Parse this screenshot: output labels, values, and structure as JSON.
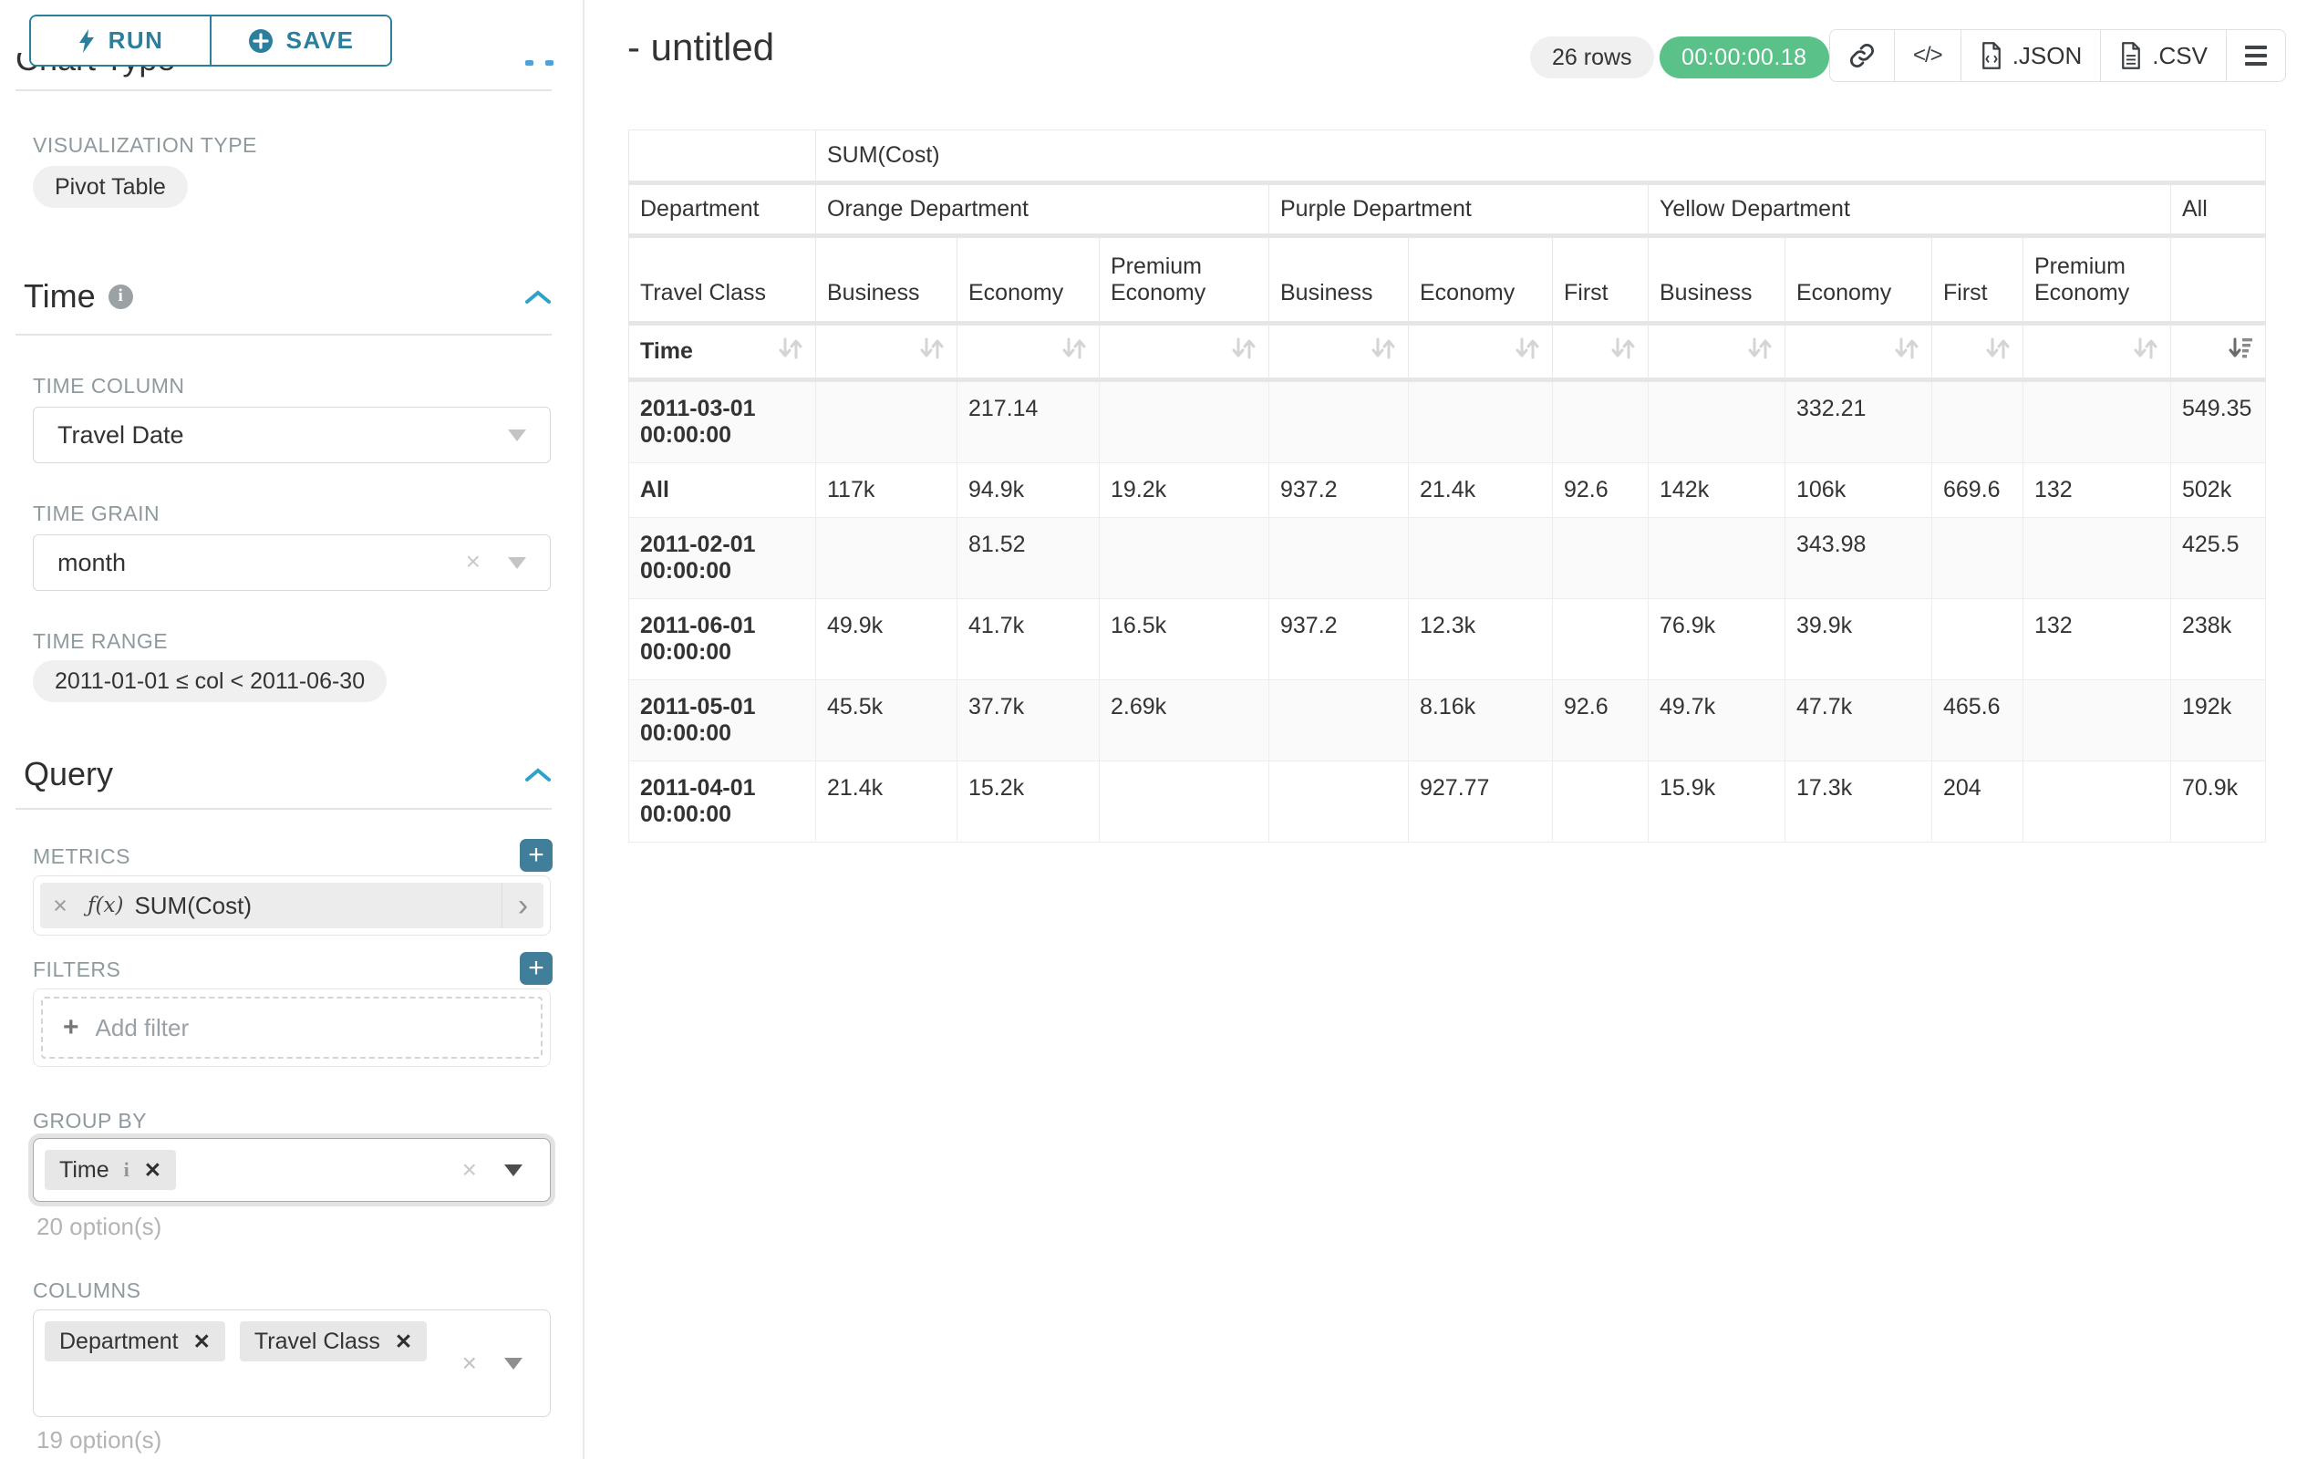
{
  "sidebar": {
    "run": "RUN",
    "save": "SAVE",
    "chart_type_heading": "Chart Type",
    "viz": {
      "label": "VISUALIZATION TYPE",
      "value": "Pivot Table"
    },
    "time": {
      "title": "Time",
      "time_column": {
        "label": "TIME COLUMN",
        "value": "Travel Date"
      },
      "time_grain": {
        "label": "TIME GRAIN",
        "value": "month"
      },
      "time_range": {
        "label": "TIME RANGE",
        "value": "2011-01-01 ≤ col < 2011-06-30"
      }
    },
    "query": {
      "title": "Query",
      "metrics": {
        "label": "METRICS",
        "fx": "ƒ(x)",
        "value": "SUM(Cost)"
      },
      "filters": {
        "label": "FILTERS",
        "placeholder": "Add filter"
      },
      "group_by": {
        "label": "GROUP BY",
        "tags": [
          "Time"
        ],
        "hint": "20 option(s)"
      },
      "columns": {
        "label": "COLUMNS",
        "tags": [
          "Department",
          "Travel Class"
        ],
        "hint": "19 option(s)"
      }
    }
  },
  "header": {
    "title": "- untitled",
    "row_count": "26 rows",
    "timer": "00:00:00.18",
    "json_label": ".JSON",
    "csv_label": ".CSV"
  },
  "pivot": {
    "metric_header": "SUM(Cost)",
    "dim_row_label": "Department",
    "dim_col_label": "Travel Class",
    "sort_label": "Time",
    "groups": [
      {
        "label": "Orange Department",
        "cols": [
          "Business",
          "Economy",
          "Premium Economy"
        ]
      },
      {
        "label": "Purple Department",
        "cols": [
          "Business",
          "Economy",
          "First"
        ]
      },
      {
        "label": "Yellow Department",
        "cols": [
          "Business",
          "Economy",
          "First",
          "Premium Economy"
        ]
      },
      {
        "label": "All",
        "cols": [
          ""
        ]
      }
    ],
    "rows": [
      {
        "label": "2011-03-01 00:00:00",
        "values": [
          "",
          "217.14",
          "",
          "",
          "",
          "",
          "",
          "332.21",
          "",
          "",
          "549.35"
        ]
      },
      {
        "label": "All",
        "values": [
          "117k",
          "94.9k",
          "19.2k",
          "937.2",
          "21.4k",
          "92.6",
          "142k",
          "106k",
          "669.6",
          "132",
          "502k"
        ]
      },
      {
        "label": "2011-02-01 00:00:00",
        "values": [
          "",
          "81.52",
          "",
          "",
          "",
          "",
          "",
          "343.98",
          "",
          "",
          "425.5"
        ]
      },
      {
        "label": "2011-06-01 00:00:00",
        "values": [
          "49.9k",
          "41.7k",
          "16.5k",
          "937.2",
          "12.3k",
          "",
          "76.9k",
          "39.9k",
          "",
          "132",
          "238k"
        ]
      },
      {
        "label": "2011-05-01 00:00:00",
        "values": [
          "45.5k",
          "37.7k",
          "2.69k",
          "",
          "8.16k",
          "92.6",
          "49.7k",
          "47.7k",
          "465.6",
          "",
          "192k"
        ]
      },
      {
        "label": "2011-04-01 00:00:00",
        "values": [
          "21.4k",
          "15.2k",
          "",
          "",
          "927.77",
          "",
          "15.9k",
          "17.3k",
          "204",
          "",
          "70.9k"
        ]
      }
    ]
  }
}
